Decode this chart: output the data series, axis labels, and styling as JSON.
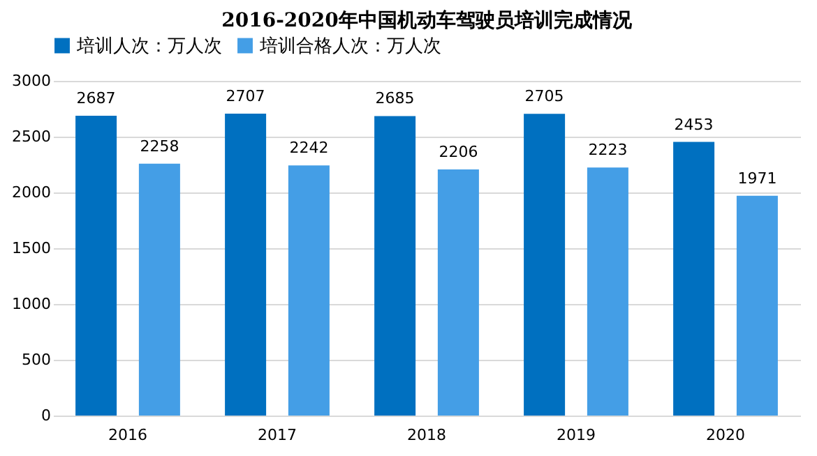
{
  "chart_data": {
    "type": "bar",
    "title": "2016-2020年中国机动车驾驶员培训完成情况",
    "categories": [
      "2016",
      "2017",
      "2018",
      "2019",
      "2020"
    ],
    "series": [
      {
        "name": "培训人次：万人次",
        "color": "#0070c0",
        "values": [
          2687,
          2707,
          2685,
          2705,
          2453
        ]
      },
      {
        "name": "培训合格人次：万人次",
        "color": "#449ee6",
        "values": [
          2258,
          2242,
          2206,
          2223,
          1971
        ]
      }
    ],
    "ylim": [
      0,
      3000
    ],
    "yticks": [
      0,
      500,
      1000,
      1500,
      2000,
      2500,
      3000
    ],
    "grid": "y",
    "legend": "top",
    "data_labels": true
  }
}
